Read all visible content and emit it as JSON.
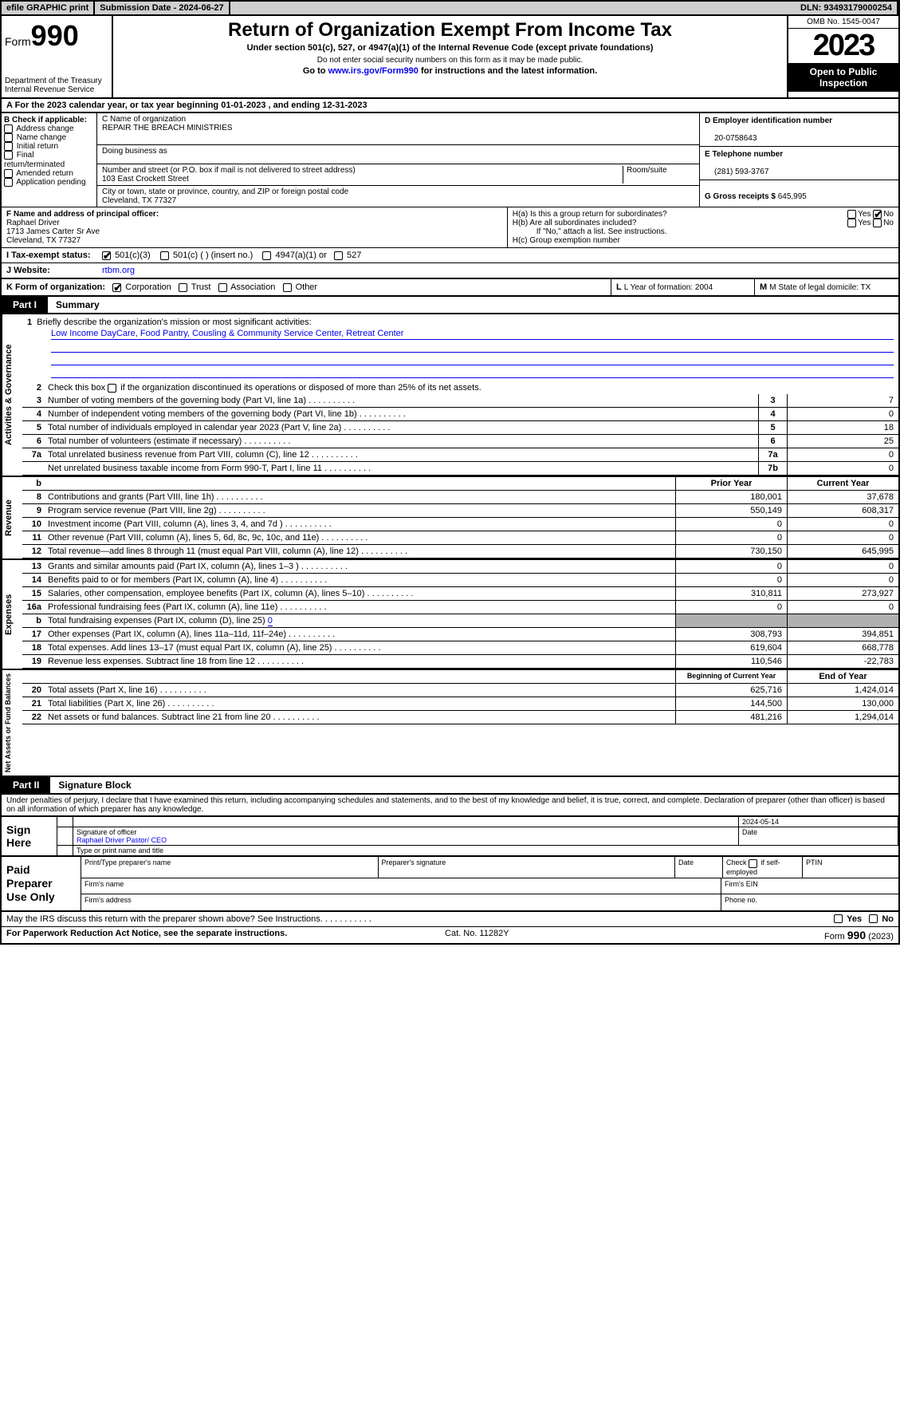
{
  "top": {
    "efile": "efile GRAPHIC print",
    "sub_label": "Submission Date - ",
    "sub_date": "2024-06-27",
    "dln_label": "DLN: ",
    "dln": "93493179000254"
  },
  "hdr": {
    "form": "Form",
    "num": "990",
    "dept": "Department of the Treasury Internal Revenue Service",
    "title": "Return of Organization Exempt From Income Tax",
    "sub1": "Under section 501(c), 527, or 4947(a)(1) of the Internal Revenue Code (except private foundations)",
    "sub2": "Do not enter social security numbers on this form as it may be made public.",
    "sub3_pre": "Go to ",
    "sub3_link": "www.irs.gov/Form990",
    "sub3_post": " for instructions and the latest information.",
    "omb": "OMB No. 1545-0047",
    "year": "2023",
    "open": "Open to Public Inspection"
  },
  "a": {
    "label": "A For the 2023 calendar year, or tax year beginning ",
    "begin": "01-01-2023",
    "mid": "   , and ending ",
    "end": "12-31-2023"
  },
  "b": {
    "title": "B Check if applicable:",
    "opts": [
      "Address change",
      "Name change",
      "Initial return",
      "Final return/terminated",
      "Amended return",
      "Application pending"
    ]
  },
  "c": {
    "name_lbl": "C Name of organization",
    "name": "REPAIR THE BREACH MINISTRIES",
    "dba_lbl": "Doing business as",
    "street_lbl": "Number and street (or P.O. box if mail is not delivered to street address)",
    "room_lbl": "Room/suite",
    "street": "103 East Crockett Street",
    "city_lbl": "City or town, state or province, country, and ZIP or foreign postal code",
    "city": "Cleveland, TX   77327"
  },
  "d": {
    "lbl": "D Employer identification number",
    "val": "20-0758643"
  },
  "e": {
    "lbl": "E Telephone number",
    "val": "(281) 593-3767"
  },
  "g": {
    "lbl": "G Gross receipts $ ",
    "val": "645,995"
  },
  "f": {
    "lbl": "F  Name and address of principal officer:",
    "name": "Raphael Driver",
    "addr1": "1713 James Carter Sr Ave",
    "addr2": "Cleveland, TX  77327"
  },
  "h": {
    "a": "H(a)  Is this a group return for subordinates?",
    "b": "H(b)  Are all subordinates included?",
    "b2": "If \"No,\" attach a list. See instructions.",
    "c": "H(c)  Group exemption number",
    "yes": "Yes",
    "no": "No"
  },
  "i": {
    "lab": "I   Tax-exempt status:",
    "o1": "501(c)(3)",
    "o2": "501(c) (  ) (insert no.)",
    "o3": "4947(a)(1) or",
    "o4": "527"
  },
  "j": {
    "lab": "J   Website:",
    "val": "rtbm.org"
  },
  "k": {
    "lab": "K Form of organization:",
    "o1": "Corporation",
    "o2": "Trust",
    "o3": "Association",
    "o4": "Other",
    "l": "L Year of formation: 2004",
    "m": "M State of legal domicile: TX"
  },
  "part1": {
    "tab": "Part I",
    "title": "Summary"
  },
  "mission": {
    "lbl": "Briefly describe the organization's mission or most significant activities:",
    "txt": "Low Income DayCare, Food Pantry, Cousling & Community Service Center, Retreat Center"
  },
  "line2": "Check this box          if the organization discontinued its operations or disposed of more than 25% of its net assets.",
  "govLines": [
    {
      "n": "3",
      "t": "Number of voting members of the governing body (Part VI, line 1a)",
      "b": "3",
      "v": "7"
    },
    {
      "n": "4",
      "t": "Number of independent voting members of the governing body (Part VI, line 1b)",
      "b": "4",
      "v": "0"
    },
    {
      "n": "5",
      "t": "Total number of individuals employed in calendar year 2023 (Part V, line 2a)",
      "b": "5",
      "v": "18"
    },
    {
      "n": "6",
      "t": "Total number of volunteers (estimate if necessary)",
      "b": "6",
      "v": "25"
    },
    {
      "n": "7a",
      "t": "Total unrelated business revenue from Part VIII, column (C), line 12",
      "b": "7a",
      "v": "0"
    },
    {
      "n": "",
      "t": "Net unrelated business taxable income from Form 990-T, Part I, line 11",
      "b": "7b",
      "v": "0"
    }
  ],
  "colHdr": {
    "b": "b",
    "prior": "Prior Year",
    "curr": "Current Year"
  },
  "revLines": [
    {
      "n": "8",
      "t": "Contributions and grants (Part VIII, line 1h)",
      "p": "180,001",
      "c": "37,678"
    },
    {
      "n": "9",
      "t": "Program service revenue (Part VIII, line 2g)",
      "p": "550,149",
      "c": "608,317"
    },
    {
      "n": "10",
      "t": "Investment income (Part VIII, column (A), lines 3, 4, and 7d )",
      "p": "0",
      "c": "0"
    },
    {
      "n": "11",
      "t": "Other revenue (Part VIII, column (A), lines 5, 6d, 8c, 9c, 10c, and 11e)",
      "p": "0",
      "c": "0"
    },
    {
      "n": "12",
      "t": "Total revenue—add lines 8 through 11 (must equal Part VIII, column (A), line 12)",
      "p": "730,150",
      "c": "645,995"
    }
  ],
  "expLines": [
    {
      "n": "13",
      "t": "Grants and similar amounts paid (Part IX, column (A), lines 1–3 )",
      "p": "0",
      "c": "0"
    },
    {
      "n": "14",
      "t": "Benefits paid to or for members (Part IX, column (A), line 4)",
      "p": "0",
      "c": "0"
    },
    {
      "n": "15",
      "t": "Salaries, other compensation, employee benefits (Part IX, column (A), lines 5–10)",
      "p": "310,811",
      "c": "273,927"
    },
    {
      "n": "16a",
      "t": "Professional fundraising fees (Part IX, column (A), line 11e)",
      "p": "0",
      "c": "0"
    }
  ],
  "line16b": {
    "n": "b",
    "t": "Total fundraising expenses (Part IX, column (D), line 25) ",
    "v": "0"
  },
  "expLines2": [
    {
      "n": "17",
      "t": "Other expenses (Part IX, column (A), lines 11a–11d, 11f–24e)",
      "p": "308,793",
      "c": "394,851"
    },
    {
      "n": "18",
      "t": "Total expenses. Add lines 13–17 (must equal Part IX, column (A), line 25)",
      "p": "619,604",
      "c": "668,778"
    },
    {
      "n": "19",
      "t": "Revenue less expenses. Subtract line 18 from line 12",
      "p": "110,546",
      "c": "-22,783"
    }
  ],
  "naHdr": {
    "p": "Beginning of Current Year",
    "c": "End of Year"
  },
  "naLines": [
    {
      "n": "20",
      "t": "Total assets (Part X, line 16)",
      "p": "625,716",
      "c": "1,424,014"
    },
    {
      "n": "21",
      "t": "Total liabilities (Part X, line 26)",
      "p": "144,500",
      "c": "130,000"
    },
    {
      "n": "22",
      "t": "Net assets or fund balances. Subtract line 21 from line 20",
      "p": "481,216",
      "c": "1,294,014"
    }
  ],
  "vtabs": {
    "gov": "Activities & Governance",
    "rev": "Revenue",
    "exp": "Expenses",
    "na": "Net Assets or Fund Balances"
  },
  "part2": {
    "tab": "Part II",
    "title": "Signature Block"
  },
  "decl": "Under penalties of perjury, I declare that I have examined this return, including accompanying schedules and statements, and to the best of my knowledge and belief, it is true, correct, and complete. Declaration of preparer (other than officer) is based on all information of which preparer has any knowledge.",
  "sign": {
    "lab": "Sign Here",
    "date": "2024-05-14",
    "sig_lbl": "Signature of officer",
    "date_lbl": "Date",
    "officer": "Raphael Driver Pastor/ CEO",
    "type_lbl": "Type or print name and title"
  },
  "prep": {
    "lab": "Paid Preparer Use Only",
    "c1": "Print/Type preparer's name",
    "c2": "Preparer's signature",
    "c3": "Date",
    "c4_pre": "Check",
    "c4_post": "if self-employed",
    "c5": "PTIN",
    "fn": "Firm's name",
    "fe": "Firm's EIN",
    "fa": "Firm's address",
    "ph": "Phone no."
  },
  "discuss": {
    "txt": "May the IRS discuss this return with the preparer shown above? See Instructions.",
    "yes": "Yes",
    "no": "No"
  },
  "footer": {
    "l": "For Paperwork Reduction Act Notice, see the separate instructions.",
    "m": "Cat. No. 11282Y",
    "r_pre": "Form ",
    "r_num": "990",
    "r_post": " (2023)"
  }
}
